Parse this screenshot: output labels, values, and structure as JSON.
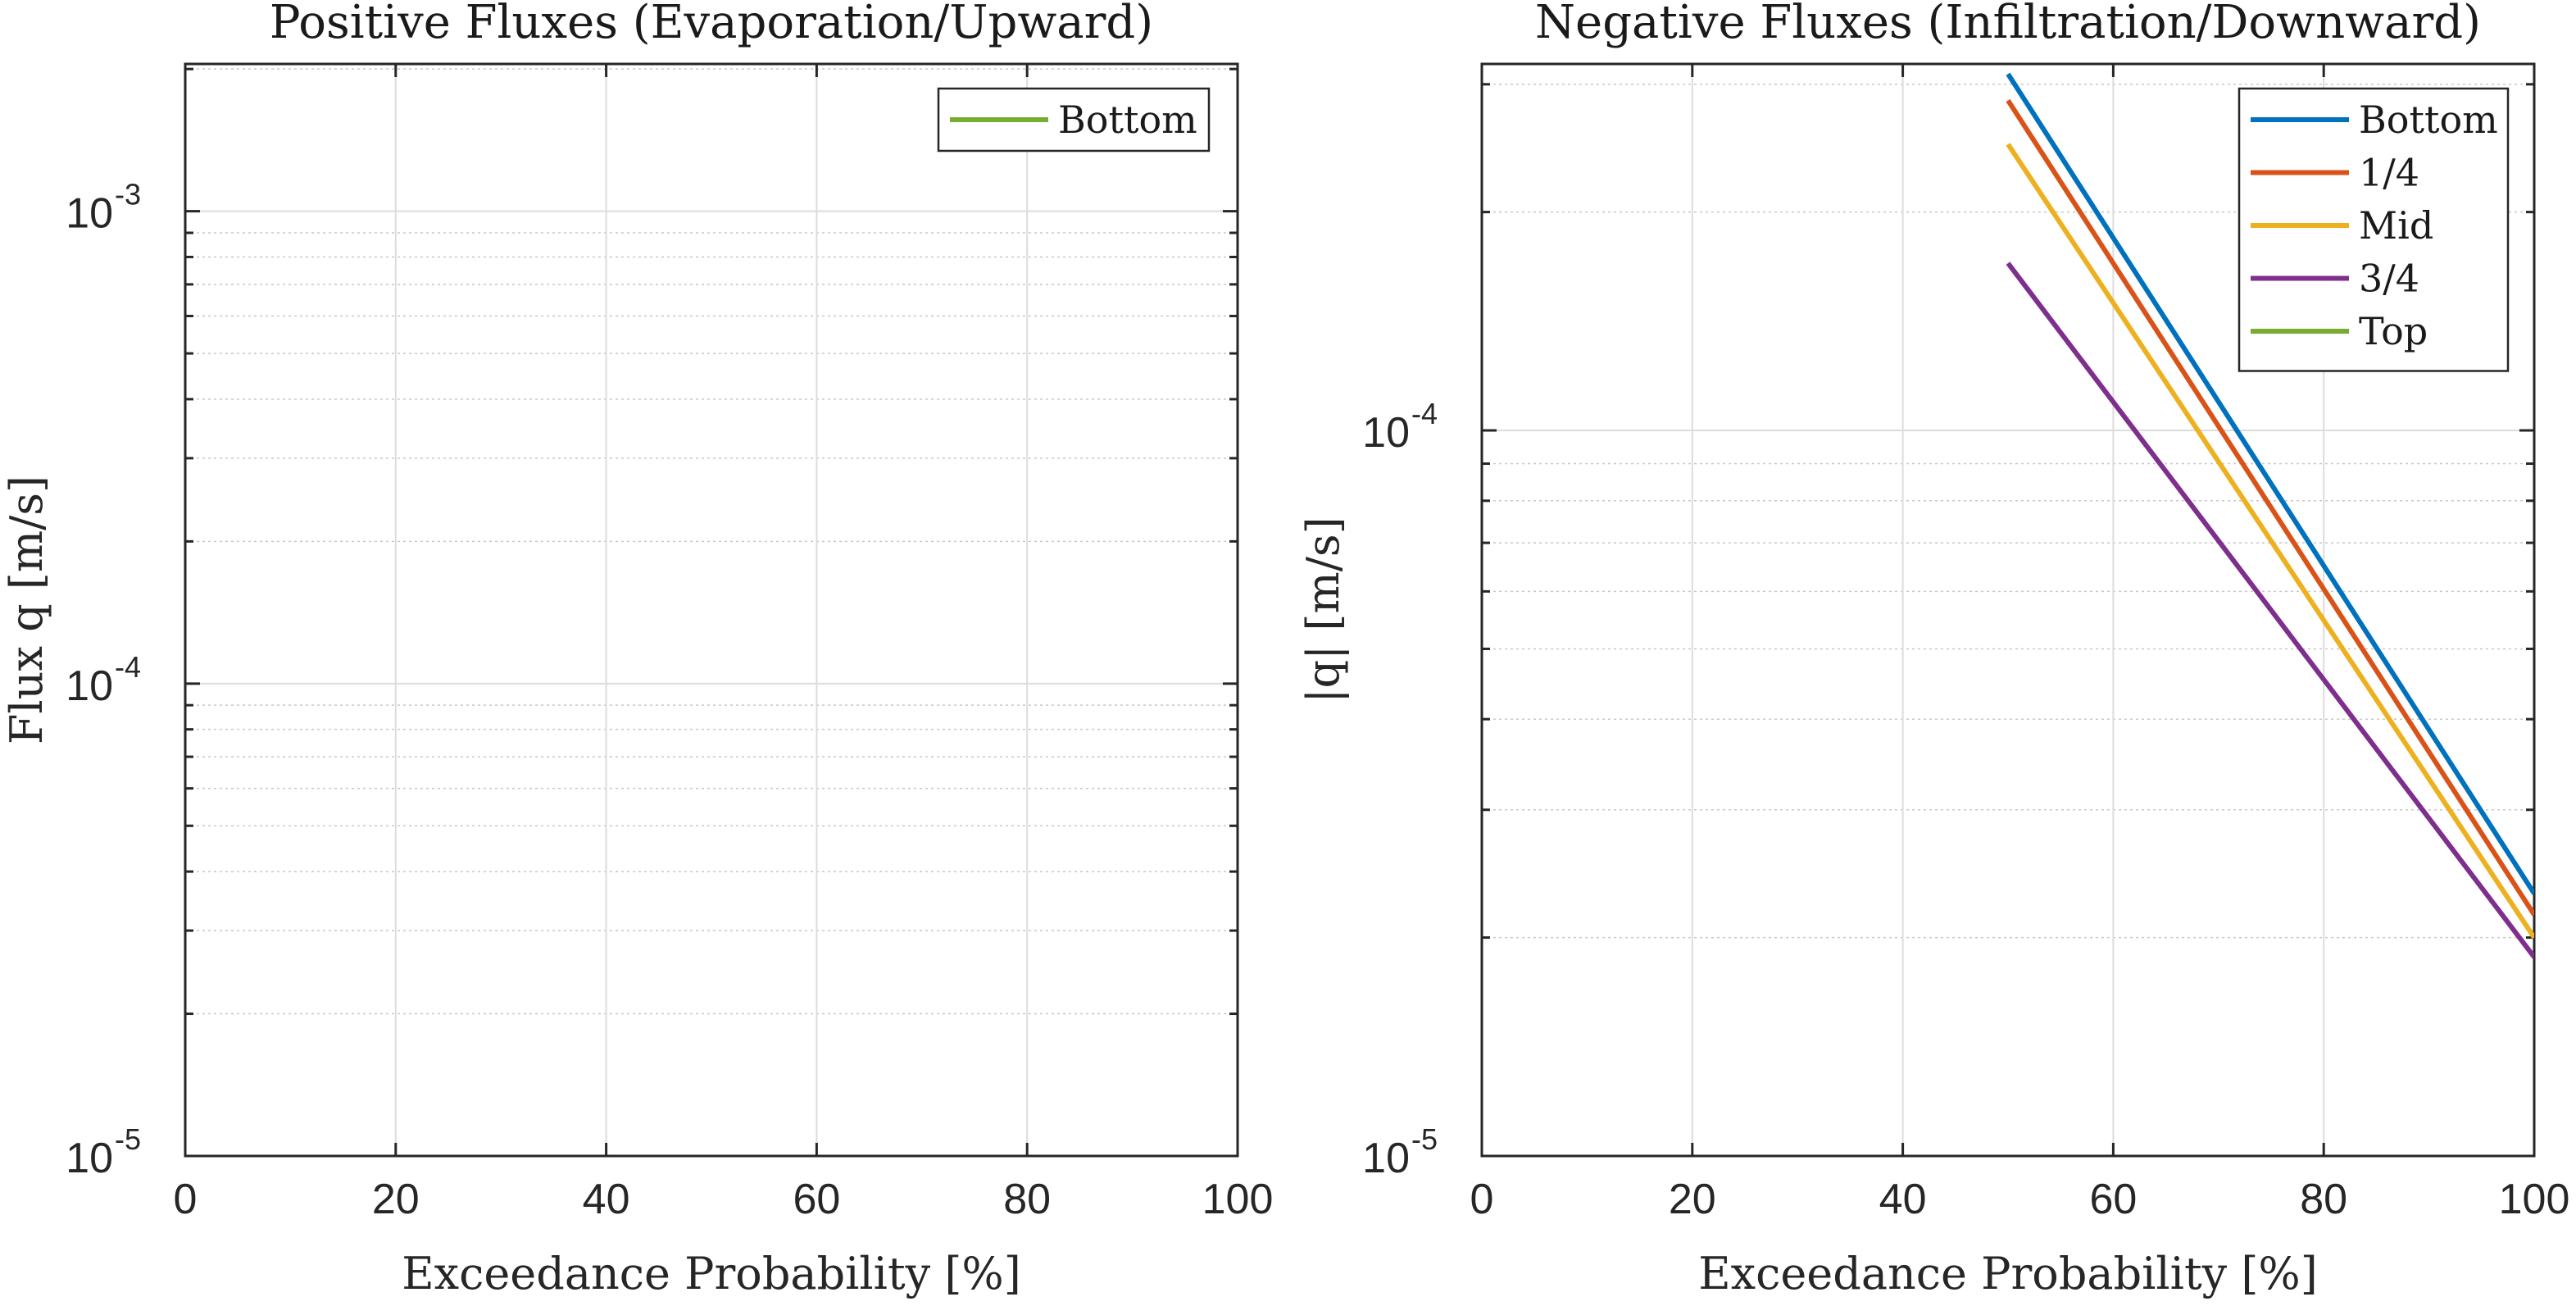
{
  "chart_data": [
    {
      "type": "line",
      "title": "Positive Fluxes (Evaporation/Upward)",
      "xlabel": "Exceedance Probability [%]",
      "ylabel": "Flux q [m/s]",
      "xlim": [
        0,
        100
      ],
      "ylim": [
        1e-05,
        0.00205
      ],
      "yscale": "log",
      "grid": true,
      "legend_position": "top-right",
      "x_ticks": [
        "0",
        "20",
        "40",
        "60",
        "80",
        "100"
      ],
      "y_ticks": [
        {
          "base": "10",
          "exp": "-5",
          "value": 1e-05
        },
        {
          "base": "10",
          "exp": "-4",
          "value": 0.0001
        },
        {
          "base": "10",
          "exp": "-3",
          "value": 0.001
        }
      ],
      "series": [
        {
          "name": "Bottom",
          "color": "#77AC30",
          "x": [],
          "y": []
        }
      ]
    },
    {
      "type": "line",
      "title": "Negative Fluxes (Infiltration/Downward)",
      "xlabel": "Exceedance Probability [%]",
      "ylabel": "|q| [m/s]",
      "xlim": [
        0,
        100
      ],
      "ylim": [
        1e-05,
        0.00032
      ],
      "yscale": "log",
      "grid": true,
      "legend_position": "top-right",
      "x_ticks": [
        "0",
        "20",
        "40",
        "60",
        "80",
        "100"
      ],
      "y_ticks": [
        {
          "base": "10",
          "exp": "-5",
          "value": 1e-05
        },
        {
          "base": "10",
          "exp": "-4",
          "value": 0.0001
        }
      ],
      "series": [
        {
          "name": "Bottom",
          "color": "#0072BD",
          "x": [
            50,
            100
          ],
          "y": [
            0.00031,
            2.3e-05
          ]
        },
        {
          "name": "1/4",
          "color": "#D95319",
          "x": [
            50,
            100
          ],
          "y": [
            0.000285,
            2.15e-05
          ]
        },
        {
          "name": "Mid",
          "color": "#EDB120",
          "x": [
            50,
            100
          ],
          "y": [
            0.000248,
            2e-05
          ]
        },
        {
          "name": "3/4",
          "color": "#7E2F8E",
          "x": [
            50,
            100
          ],
          "y": [
            0.00017,
            1.88e-05
          ]
        },
        {
          "name": "Top",
          "color": "#77AC30",
          "x": [],
          "y": []
        }
      ]
    }
  ]
}
